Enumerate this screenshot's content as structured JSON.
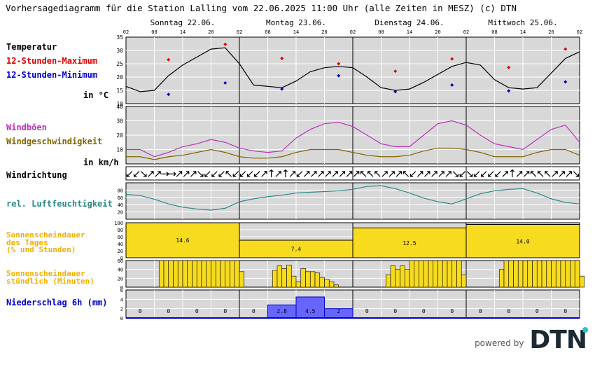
{
  "title": "Vorhersagediagramm für die Station Lalling vom 22.06.2025 11:00 Uhr (alle Zeiten in MESZ)   (c) DTN",
  "days": [
    "Sonntag 22.06.",
    "Montag 23.06.",
    "Dienstag 24.06.",
    "Mittwoch 25.06."
  ],
  "hour_ticks": [
    "02",
    "08",
    "14",
    "20"
  ],
  "end_tick": "02",
  "labels": {
    "temperatur": "Temperatur",
    "max": "12-Stunden-Maximum",
    "min": "12-Stunden-Minimum",
    "temp_unit": "in °C",
    "windboeen": "Windböen",
    "windgeschw": "Windgeschwindigkeit",
    "wind_unit": "in km/h",
    "windrichtung": "Windrichtung",
    "feuchte": "rel. Luftfeuchtigkeit",
    "sonne_tag_1": "Sonnenscheindauer",
    "sonne_tag_2": "des Tages",
    "sonne_tag_3": "(% und Stunden)",
    "sonne_std_1": "Sonnenscheindauer",
    "sonne_std_2": "stündlich (Minuten)",
    "niederschlag": "Niederschlag 6h  (mm)"
  },
  "colors": {
    "max": "#dd0000",
    "min": "#0000cc",
    "boeen": "#bb33bb",
    "geschw": "#806600",
    "feuchte": "#2a8a8a",
    "sonne": "#f2b000",
    "sonne_fill": "#f7db1f",
    "regen": "#0000cc",
    "regen_fill": "#6666ff",
    "grid_bg": "#d8d8d8"
  },
  "brand": {
    "powered": "powered by",
    "logo": "DTN"
  },
  "chart_data": [
    {
      "type": "line",
      "name": "Temperatur",
      "ylim": [
        10,
        35
      ],
      "yticks": [
        10,
        15,
        20,
        25,
        30,
        35
      ],
      "x_hours": [
        0,
        3,
        6,
        9,
        12,
        15,
        18,
        21,
        24,
        27,
        30,
        33,
        36,
        39,
        42,
        45,
        48,
        51,
        54,
        57,
        60,
        63,
        66,
        69,
        72,
        75,
        78,
        81,
        84,
        87,
        90,
        93,
        96
      ],
      "values": [
        16.5,
        14.5,
        15,
        20.5,
        24.5,
        27.5,
        30.5,
        31,
        25,
        17,
        16.5,
        16,
        18.5,
        22,
        23.5,
        24,
        23.5,
        20,
        16,
        15,
        15.5,
        18,
        21,
        24,
        25.5,
        24.5,
        19,
        16,
        15.5,
        16,
        21.5,
        27,
        29.5
      ],
      "max_points": [
        [
          9,
          26.5
        ],
        [
          21,
          32.3
        ],
        [
          33,
          27
        ],
        [
          45,
          25
        ],
        [
          57,
          22.2
        ],
        [
          69,
          26.8
        ],
        [
          81,
          23.6
        ],
        [
          93,
          30.5
        ]
      ],
      "min_points": [
        [
          9,
          13.5
        ],
        [
          21,
          17.8
        ],
        [
          33,
          15.5
        ],
        [
          45,
          20.5
        ],
        [
          57,
          14.5
        ],
        [
          69,
          17
        ],
        [
          81,
          14.8
        ],
        [
          93,
          18.2
        ]
      ]
    },
    {
      "type": "line",
      "name": "Wind",
      "ylim": [
        0,
        40
      ],
      "yticks": [
        10,
        20,
        30,
        40
      ],
      "x_hours": [
        0,
        3,
        6,
        9,
        12,
        15,
        18,
        21,
        24,
        27,
        30,
        33,
        36,
        39,
        42,
        45,
        48,
        51,
        54,
        57,
        60,
        63,
        66,
        69,
        72,
        75,
        78,
        81,
        84,
        87,
        90,
        93,
        96
      ],
      "boeen": [
        10,
        10,
        5,
        8,
        12,
        14,
        17,
        15,
        11,
        9,
        8,
        9,
        18,
        24,
        28,
        29,
        26,
        20,
        14,
        12,
        12,
        20,
        28,
        30,
        27,
        20,
        14,
        12,
        10,
        17,
        24,
        27,
        15
      ],
      "geschw": [
        5,
        5,
        3,
        5,
        6,
        8,
        10,
        8,
        5,
        4,
        4,
        5,
        8,
        10,
        10,
        10,
        8,
        6,
        5,
        5,
        6,
        9,
        11,
        11,
        10,
        8,
        5,
        5,
        5,
        8,
        10,
        10,
        6
      ]
    },
    {
      "type": "table",
      "name": "Windrichtung",
      "arrows": [
        "↙",
        "↙",
        "↘",
        "↗",
        "↗",
        "→",
        "→",
        "↗",
        "↗",
        "↗",
        "↘",
        "↙",
        "↙",
        "↙",
        "↖",
        "↙",
        "↙",
        "↙",
        "↙",
        "↗",
        "↑",
        "↗",
        "↑",
        "↗",
        "↙",
        "↗",
        "↗",
        "↗",
        "↗",
        "↗",
        "↗",
        "↗",
        "↗",
        "↖",
        "↖",
        "↖",
        "↗",
        "↗",
        "↗",
        "↖",
        "↙",
        "↗",
        "↗",
        "↗",
        "↗",
        "↗",
        "↘",
        "↙",
        "↘",
        "↙",
        "↙",
        "↙",
        "↙",
        "↗",
        "↑",
        "↗",
        "↗",
        "↖",
        "↖",
        "↖",
        "↗",
        "↗",
        "↗",
        "↘"
      ]
    },
    {
      "type": "line",
      "name": "rel. Luftfeuchtigkeit",
      "ylim": [
        0,
        100
      ],
      "yticks": [
        20,
        40,
        60,
        80
      ],
      "x_hours": [
        0,
        3,
        6,
        9,
        12,
        15,
        18,
        21,
        24,
        27,
        30,
        33,
        36,
        39,
        42,
        45,
        48,
        51,
        54,
        57,
        60,
        63,
        66,
        69,
        72,
        75,
        78,
        81,
        84,
        87,
        90,
        93,
        96
      ],
      "values": [
        68,
        65,
        55,
        42,
        33,
        28,
        25,
        30,
        48,
        56,
        62,
        66,
        72,
        74,
        76,
        78,
        82,
        90,
        92,
        84,
        72,
        58,
        48,
        42,
        56,
        70,
        78,
        82,
        84,
        72,
        56,
        46,
        42
      ]
    },
    {
      "type": "bar",
      "name": "Sonnenscheindauer des Tages",
      "ylim": [
        0,
        100
      ],
      "yticks": [
        0,
        20,
        40,
        60,
        80,
        100
      ],
      "categories": [
        "22.06.",
        "23.06.",
        "24.06.",
        "25.06."
      ],
      "values": [
        100,
        50,
        85,
        95
      ],
      "data_labels": [
        "14.6",
        "7.4",
        "12.5",
        "14.0"
      ]
    },
    {
      "type": "bar",
      "name": "Sonnenscheindauer stündlich",
      "ylim": [
        0,
        60
      ],
      "yticks": [
        0,
        20,
        40,
        60
      ],
      "start_hours": [
        7,
        31,
        55,
        79
      ],
      "values": [
        [
          60,
          60,
          60,
          60,
          60,
          60,
          60,
          60,
          60,
          60,
          60,
          60,
          60,
          60,
          60,
          60,
          60,
          35
        ],
        [
          38,
          48,
          42,
          50,
          25,
          12,
          42,
          35,
          35,
          32,
          22,
          18,
          12,
          5
        ],
        [
          28,
          48,
          40,
          48,
          40,
          60,
          60,
          60,
          60,
          60,
          60,
          60,
          60,
          60,
          60,
          60,
          28
        ],
        [
          40,
          60,
          60,
          60,
          60,
          60,
          60,
          60,
          60,
          60,
          60,
          60,
          60,
          60,
          60,
          60,
          60,
          25
        ]
      ]
    },
    {
      "type": "bar",
      "name": "Niederschlag 6h",
      "ylim": [
        0,
        6
      ],
      "yticks": [
        0,
        2,
        4,
        6
      ],
      "values": [
        0,
        0,
        0,
        0,
        0,
        2.8,
        4.5,
        2,
        0,
        0,
        0,
        0,
        0,
        0,
        0,
        0
      ],
      "data_labels": [
        "0",
        "0",
        "0",
        "0",
        "0",
        "2.8",
        "4.5",
        "2",
        "0",
        "0",
        "0",
        "0",
        "0",
        "0",
        "0",
        "0"
      ]
    }
  ]
}
